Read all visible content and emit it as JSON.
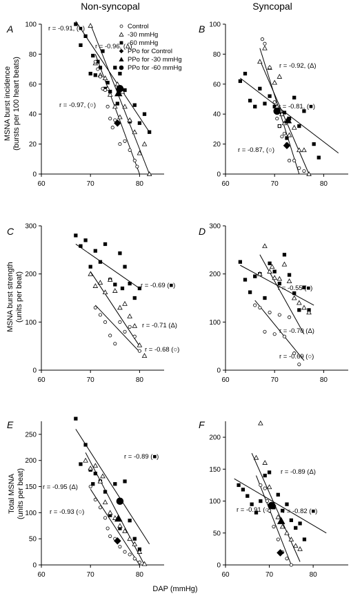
{
  "figure": {
    "column_titles": [
      "Non-syncopal",
      "Syncopal"
    ],
    "xlabel": "DAP (mmHg)",
    "row_ylabels": [
      [
        "MSNA burst incidence",
        "(bursts per 100 heart beats)"
      ],
      [
        "MSNA burst strength",
        "(units per beat)"
      ],
      [
        "Total MSNA",
        "(units per beat)"
      ]
    ],
    "legend": [
      {
        "marker": "open-circle",
        "label": "Control"
      },
      {
        "marker": "open-triangle",
        "label": "-30 mmHg"
      },
      {
        "marker": "filled-square",
        "label": "-60 mmHg"
      },
      {
        "marker": "filled-diamond",
        "label": "PPo for Control"
      },
      {
        "marker": "filled-triangle",
        "label": "PPo for -30 mmHg"
      },
      {
        "marker": "filled-circle",
        "label": "PPo for -60 mmHg"
      }
    ]
  },
  "chart_data": [
    {
      "panel": "A",
      "type": "scatter",
      "xlim": [
        60,
        85
      ],
      "ylim": [
        0,
        100
      ],
      "xticks": [
        60,
        70,
        80
      ],
      "yticks": [
        0,
        20,
        40,
        60,
        80,
        100
      ],
      "series": [
        {
          "marker": "filled-square",
          "x": [
            67,
            68,
            69,
            70,
            70.5,
            71,
            71.5,
            72,
            72.5,
            73,
            73.5,
            74,
            75,
            75.5,
            76,
            77,
            78,
            79,
            80,
            81,
            82
          ],
          "y": [
            100,
            86,
            92,
            67,
            79,
            66,
            75,
            71,
            82,
            57,
            61,
            55,
            71,
            47,
            67,
            56,
            35,
            46,
            34,
            40,
            28
          ]
        },
        {
          "marker": "open-triangle",
          "x": [
            70,
            71,
            72,
            73,
            73.5,
            74,
            75,
            75.5,
            76,
            76.5,
            77,
            78,
            79,
            80,
            81,
            82
          ],
          "y": [
            99,
            74,
            66,
            64,
            57,
            53,
            45,
            60,
            38,
            55,
            45,
            36,
            28,
            14,
            20,
            0
          ]
        },
        {
          "marker": "open-circle",
          "x": [
            71,
            71.5,
            72,
            72.5,
            73,
            73.5,
            74,
            74.5,
            75,
            76,
            77,
            78,
            79,
            79.5
          ],
          "y": [
            75,
            70,
            65,
            57,
            56,
            45,
            37,
            31,
            36,
            20,
            22,
            16,
            9,
            5
          ]
        }
      ],
      "fits": [
        {
          "label": "r = -0.91, (■)",
          "x": [
            67,
            82
          ],
          "y": [
            102,
            28
          ]
        },
        {
          "label": "r = -0.96, (Δ)",
          "x": [
            70,
            82
          ],
          "y": [
            100,
            0
          ]
        },
        {
          "label": "r = -0.97, (○)",
          "x": [
            71,
            80
          ],
          "y": [
            80,
            0
          ]
        }
      ],
      "ppo": [
        {
          "marker": "filled-diamond",
          "x": 75.5,
          "y": 34
        },
        {
          "marker": "filled-triangle",
          "x": 75.7,
          "y": 54
        },
        {
          "marker": "filled-circle",
          "x": 76,
          "y": 57
        }
      ]
    },
    {
      "panel": "B",
      "type": "scatter",
      "xlim": [
        60,
        85
      ],
      "ylim": [
        0,
        100
      ],
      "xticks": [
        60,
        70,
        80
      ],
      "yticks": [
        0,
        20,
        40,
        60,
        80,
        100
      ],
      "series": [
        {
          "marker": "filled-square",
          "x": [
            63,
            64,
            65,
            66,
            67,
            68,
            69,
            70,
            71,
            71.5,
            72,
            72.5,
            73,
            74,
            75,
            76,
            78,
            79
          ],
          "y": [
            62,
            67,
            49,
            45,
            57,
            47,
            52,
            45,
            32,
            40,
            41,
            24,
            37,
            51,
            32,
            42,
            20,
            11
          ]
        },
        {
          "marker": "open-triangle",
          "x": [
            67,
            68,
            69,
            70,
            70.5,
            71,
            71.5,
            72,
            73,
            74,
            75,
            76,
            77
          ],
          "y": [
            75,
            84,
            71,
            61,
            45,
            65,
            40,
            34,
            26,
            31,
            16,
            16,
            0
          ]
        },
        {
          "marker": "open-circle",
          "x": [
            67.5,
            68,
            69,
            70,
            70.5,
            71,
            71.5,
            72,
            72.5,
            73,
            74,
            75,
            76
          ],
          "y": [
            90,
            87,
            71,
            48,
            37,
            32,
            25,
            27,
            20,
            9,
            9,
            4,
            2
          ]
        }
      ],
      "fits": [
        {
          "label": "r = -0.92, (Δ)",
          "x": [
            67,
            77
          ],
          "y": [
            76,
            0
          ]
        },
        {
          "label": "r = -0.81, (■)",
          "x": [
            63,
            83
          ],
          "y": [
            64,
            14
          ]
        },
        {
          "label": "r = -0.87, (○)",
          "x": [
            67,
            75
          ],
          "y": [
            84,
            0
          ]
        }
      ],
      "ppo": [
        {
          "marker": "filled-diamond",
          "x": 72.5,
          "y": 19
        },
        {
          "marker": "filled-triangle",
          "x": 72.7,
          "y": 36
        },
        {
          "marker": "filled-circle",
          "x": 70.5,
          "y": 42
        }
      ]
    },
    {
      "panel": "C",
      "type": "scatter",
      "xlim": [
        60,
        85
      ],
      "ylim": [
        0,
        300
      ],
      "xticks": [
        60,
        70,
        80
      ],
      "yticks": [
        0,
        100,
        200,
        300
      ],
      "series": [
        {
          "marker": "filled-square",
          "x": [
            67,
            68,
            69,
            70,
            71,
            72,
            73,
            74,
            75,
            76,
            76.5,
            77,
            78,
            79,
            80
          ],
          "y": [
            280,
            258,
            270,
            215,
            248,
            225,
            262,
            188,
            178,
            243,
            170,
            215,
            180,
            150,
            170
          ]
        },
        {
          "marker": "open-triangle",
          "x": [
            70,
            71,
            72,
            73,
            74,
            75,
            76,
            77,
            78,
            79,
            80,
            81
          ],
          "y": [
            200,
            175,
            182,
            162,
            188,
            165,
            130,
            138,
            112,
            92,
            52,
            30
          ]
        },
        {
          "marker": "open-circle",
          "x": [
            71,
            72,
            73,
            74,
            75,
            76,
            77,
            78,
            79,
            80
          ],
          "y": [
            130,
            115,
            100,
            72,
            55,
            100,
            80,
            90,
            70,
            40
          ]
        }
      ],
      "fits": [
        {
          "label": "r = -0.69 (■)",
          "x": [
            67,
            80
          ],
          "y": [
            262,
            170
          ]
        },
        {
          "label": "r = -0.71 (Δ)",
          "x": [
            70,
            80
          ],
          "y": [
            205,
            50
          ]
        },
        {
          "label": "r = -0.68 (○)",
          "x": [
            71,
            80
          ],
          "y": [
            135,
            38
          ]
        }
      ],
      "ppo": []
    },
    {
      "panel": "D",
      "type": "scatter",
      "xlim": [
        60,
        85
      ],
      "ylim": [
        0,
        300
      ],
      "xticks": [
        60,
        70,
        80
      ],
      "yticks": [
        0,
        100,
        200,
        300
      ],
      "series": [
        {
          "marker": "filled-square",
          "x": [
            63,
            64,
            65,
            66,
            67,
            68,
            69,
            70,
            71,
            72,
            73,
            74,
            75,
            76,
            77
          ],
          "y": [
            225,
            188,
            162,
            195,
            200,
            150,
            222,
            205,
            180,
            240,
            198,
            160,
            125,
            172,
            125
          ]
        },
        {
          "marker": "open-triangle",
          "x": [
            67,
            68,
            69,
            69.5,
            70,
            71,
            72,
            73,
            74,
            75,
            76,
            77
          ],
          "y": [
            200,
            258,
            205,
            215,
            192,
            190,
            220,
            185,
            150,
            140,
            130,
            120
          ]
        },
        {
          "marker": "open-circle",
          "x": [
            66,
            67,
            68,
            69,
            70,
            71,
            72,
            73,
            74,
            75
          ],
          "y": [
            135,
            130,
            80,
            120,
            75,
            115,
            70,
            110,
            35,
            12
          ]
        }
      ],
      "fits": [
        {
          "label": "r = -0.55 (■)",
          "x": [
            63,
            78
          ],
          "y": [
            218,
            135
          ]
        },
        {
          "label": "r = -0.70 (Δ)",
          "x": [
            67,
            76
          ],
          "y": [
            240,
            75
          ]
        },
        {
          "label": "r = -0.69 (○)",
          "x": [
            66,
            76
          ],
          "y": [
            145,
            20
          ]
        }
      ],
      "ppo": []
    },
    {
      "panel": "E",
      "type": "scatter",
      "xlim": [
        60,
        85
      ],
      "ylim": [
        0,
        275
      ],
      "xticks": [
        60,
        70,
        80
      ],
      "yticks": [
        0,
        50,
        100,
        150,
        200,
        250
      ],
      "series": [
        {
          "marker": "filled-square",
          "x": [
            67,
            68,
            69,
            70,
            70.5,
            71,
            72,
            73,
            74,
            75,
            76,
            77,
            78,
            79,
            80
          ],
          "y": [
            280,
            193,
            230,
            182,
            155,
            175,
            160,
            140,
            95,
            155,
            70,
            160,
            85,
            50,
            30
          ]
        },
        {
          "marker": "open-triangle",
          "x": [
            69,
            70,
            71,
            72,
            72.5,
            73,
            74,
            75,
            76,
            77,
            78,
            79,
            80,
            81
          ],
          "y": [
            200,
            185,
            190,
            160,
            170,
            120,
            100,
            90,
            75,
            65,
            50,
            40,
            25,
            2
          ]
        },
        {
          "marker": "open-circle",
          "x": [
            70,
            71,
            72,
            73,
            73.5,
            74,
            75,
            76,
            77,
            78,
            79,
            80
          ],
          "y": [
            150,
            125,
            110,
            90,
            70,
            55,
            50,
            35,
            25,
            20,
            12,
            5
          ]
        }
      ],
      "fits": [
        {
          "label": "r = -0.89 (■)",
          "x": [
            67,
            82
          ],
          "y": [
            260,
            40
          ]
        },
        {
          "label": "r = -0.95 (Δ)",
          "x": [
            69,
            81
          ],
          "y": [
            215,
            0
          ]
        },
        {
          "label": "r = -0.93 (○)",
          "x": [
            70,
            80
          ],
          "y": [
            145,
            0
          ]
        }
      ],
      "ppo": [
        {
          "marker": "filled-diamond",
          "x": 75.5,
          "y": 46
        },
        {
          "marker": "filled-triangle",
          "x": 75.7,
          "y": 89
        },
        {
          "marker": "filled-circle",
          "x": 76,
          "y": 122
        }
      ]
    },
    {
      "panel": "F",
      "type": "scatter",
      "xlim": [
        60,
        88
      ],
      "ylim": [
        0,
        225
      ],
      "xticks": [
        60,
        70,
        80
      ],
      "yticks": [
        0,
        50,
        100,
        150,
        200
      ],
      "series": [
        {
          "marker": "filled-square",
          "x": [
            63,
            64,
            65,
            66,
            67,
            68,
            69,
            70,
            71,
            72,
            73,
            74,
            75,
            76,
            77,
            78
          ],
          "y": [
            125,
            118,
            108,
            95,
            82,
            100,
            140,
            145,
            90,
            110,
            85,
            95,
            70,
            58,
            65,
            40
          ]
        },
        {
          "marker": "open-triangle",
          "x": [
            67,
            68,
            69,
            70,
            71,
            72,
            73,
            74,
            75,
            76,
            77
          ],
          "y": [
            168,
            222,
            160,
            122,
            95,
            75,
            60,
            50,
            40,
            30,
            25
          ]
        },
        {
          "marker": "open-circle",
          "x": [
            68,
            69,
            69.5,
            70,
            71,
            72,
            73,
            74,
            75
          ],
          "y": [
            125,
            120,
            100,
            85,
            60,
            40,
            20,
            10,
            0
          ]
        }
      ],
      "fits": [
        {
          "label": "r = -0.89 (Δ)",
          "x": [
            66,
            77
          ],
          "y": [
            175,
            5
          ]
        },
        {
          "label": "r = -0.82 (■)",
          "x": [
            62,
            83
          ],
          "y": [
            135,
            50
          ]
        },
        {
          "label": "r = -0.91 (○)",
          "x": [
            67,
            75
          ],
          "y": [
            140,
            0
          ]
        }
      ],
      "ppo": [
        {
          "marker": "filled-diamond",
          "x": 72.5,
          "y": 19
        },
        {
          "marker": "filled-triangle",
          "x": 72.7,
          "y": 69
        },
        {
          "marker": "filled-circle",
          "x": 70.5,
          "y": 93
        }
      ]
    }
  ]
}
